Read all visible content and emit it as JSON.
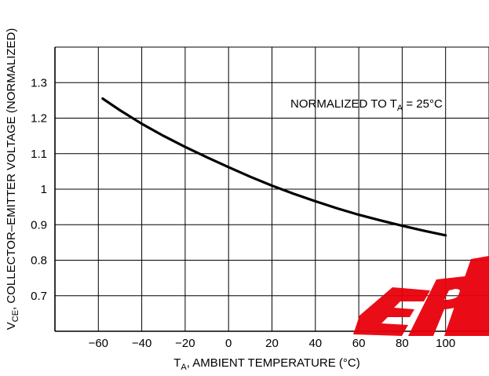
{
  "colors": {
    "grid": "#000000",
    "curve": "#000000",
    "watermark": "#e8000b"
  },
  "chart_data": {
    "type": "line",
    "title": "",
    "xlabel": {
      "main": "T",
      "sub": "A",
      "rest": ", AMBIENT TEMPERATURE (°C)"
    },
    "ylabel": {
      "main": "V",
      "sub": "CE",
      "rest": ", COLLECTOR–EMITTER VOLTAGE (NORMALIZED)"
    },
    "xlim": [
      -80,
      120
    ],
    "ylim": [
      0.6,
      1.4
    ],
    "x_ticks": [
      -60,
      -40,
      -20,
      0,
      20,
      40,
      60,
      80,
      100
    ],
    "x_tick_labels": [
      "−60",
      "−40",
      "−20",
      "0",
      "20",
      "40",
      "60",
      "80",
      "100"
    ],
    "y_ticks": [
      0.7,
      0.8,
      0.9,
      1.0,
      1.1,
      1.2,
      1.3
    ],
    "y_tick_labels": [
      "0.7",
      "0.8",
      "0.9",
      "1",
      "1.1",
      "1.2",
      "1.3"
    ],
    "grid": true,
    "annotation": {
      "main": "NORMALIZED TO T",
      "sub": "A",
      "rest": " = 25°C"
    },
    "series": [
      {
        "x": [
          -58,
          -50,
          -40,
          -30,
          -20,
          -10,
          0,
          10,
          20,
          30,
          40,
          50,
          60,
          70,
          80,
          90,
          100
        ],
        "y": [
          1.255,
          1.222,
          1.184,
          1.15,
          1.119,
          1.09,
          1.062,
          1.035,
          1.01,
          0.987,
          0.966,
          0.946,
          0.928,
          0.912,
          0.897,
          0.883,
          0.87
        ]
      }
    ]
  },
  "watermark": {
    "text": "EPM"
  }
}
